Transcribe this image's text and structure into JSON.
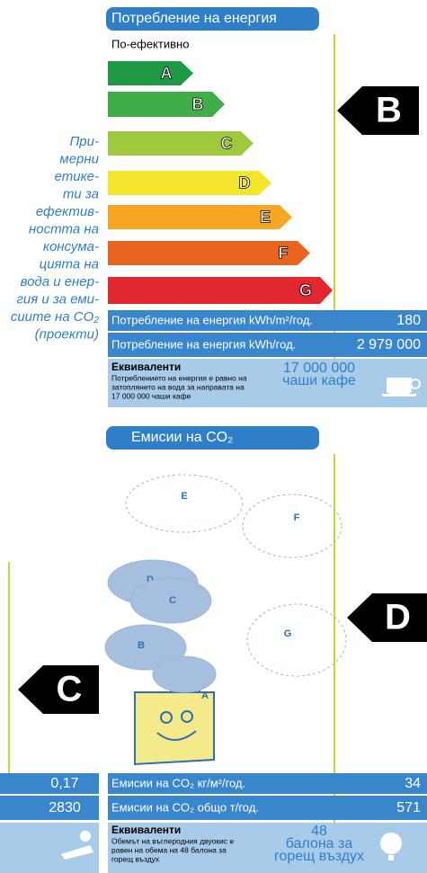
{
  "caption": {
    "lines": [
      "При-",
      "мерни",
      "етике-",
      "ти за",
      "ефектив-",
      "ността на",
      "консума-",
      "цията на",
      "вода и енер-",
      "гия и за еми-",
      "сиите на CO₂",
      "(проекти)"
    ]
  },
  "energy_label": {
    "header": "Потребление на енергия",
    "more_efficient": "По-ефективно",
    "classes": [
      "A",
      "B",
      "C",
      "D",
      "E",
      "F",
      "G"
    ],
    "rating": "B",
    "rows": [
      {
        "label": "Потребление на енергия kWh/m²/год.",
        "value": "180"
      },
      {
        "label": "Потребление на енергия kWh/год.",
        "value": "2 979 000"
      }
    ],
    "equivalents": {
      "title": "Еквиваленти",
      "text": [
        "Потреблението на енергия е равно на",
        "затоплянето на вода за направата на",
        "17 000 000 чаши кафе"
      ],
      "value": [
        "17 000 000",
        "чаши кафе"
      ]
    }
  },
  "co2_label": {
    "header": "Емисии на CO₂",
    "bubbles": [
      "E",
      "F",
      "D",
      "C",
      "G",
      "B",
      "A"
    ],
    "rating": "D",
    "rows": [
      {
        "label": "Емисии на CO₂ кг/м²/год.",
        "value": "34"
      },
      {
        "label": "Емисии на CO₂ общо т/год.",
        "value": "571"
      }
    ],
    "equivalents": {
      "title": "Еквиваленти",
      "text": [
        "Обемът на въглеродния двуокис е",
        "равен на обема на 48 балона за",
        "горещ въздух"
      ],
      "value": [
        "48",
        "балона за",
        "горещ въздух"
      ]
    }
  },
  "water_label": {
    "rating": "C",
    "values": [
      "0,17",
      "2830"
    ]
  }
}
